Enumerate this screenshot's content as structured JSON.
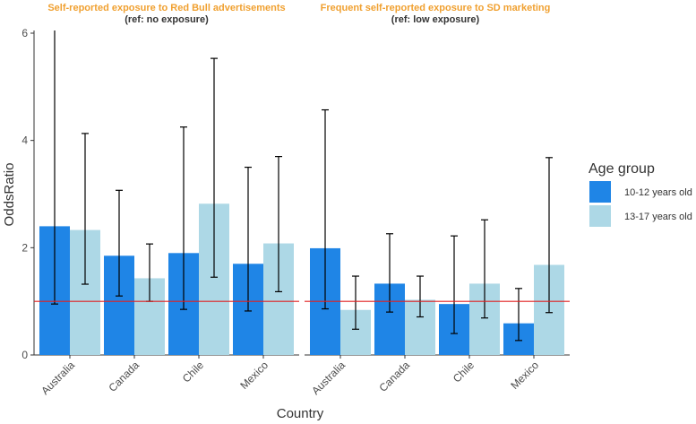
{
  "chart_data": {
    "type": "bar",
    "xlabel": "Country",
    "ylabel": "OddsRatio",
    "ylim": [
      0,
      6.05
    ],
    "yticks": [
      0,
      2,
      4,
      6
    ],
    "reference_line": 1,
    "categories": [
      "Australia",
      "Canada",
      "Chile",
      "Mexico"
    ],
    "legend": {
      "title": "Age group",
      "position": "right",
      "entries": [
        {
          "name": "10-12 years old",
          "color": "#1f85e6"
        },
        {
          "name": "13-17 years old",
          "color": "#add8e6"
        }
      ]
    },
    "panels": [
      {
        "title": "Self-reported exposure to Red Bull advertisements",
        "subtitle": "(ref: no exposure)",
        "series": [
          {
            "name": "10-12 years old",
            "values": [
              2.4,
              1.85,
              1.9,
              1.7
            ],
            "lower": [
              0.95,
              1.1,
              0.85,
              0.82
            ],
            "upper": [
              6.1,
              3.07,
              4.25,
              3.5
            ]
          },
          {
            "name": "13-17 years old",
            "values": [
              2.33,
              1.43,
              2.82,
              2.08
            ],
            "lower": [
              1.32,
              1.0,
              1.45,
              1.18
            ],
            "upper": [
              4.13,
              2.07,
              5.53,
              3.7
            ]
          }
        ]
      },
      {
        "title": "Frequent self-reported exposure to SD marketing",
        "subtitle": "(ref: low exposure)",
        "series": [
          {
            "name": "10-12 years old",
            "values": [
              1.99,
              1.33,
              0.95,
              0.59
            ],
            "lower": [
              0.86,
              0.8,
              0.4,
              0.27
            ],
            "upper": [
              4.57,
              2.26,
              2.22,
              1.24
            ]
          },
          {
            "name": "13-17 years old",
            "values": [
              0.84,
              1.03,
              1.33,
              1.68
            ],
            "lower": [
              0.48,
              0.71,
              0.69,
              0.79
            ],
            "upper": [
              1.47,
              1.47,
              2.52,
              3.68
            ]
          }
        ]
      }
    ]
  }
}
